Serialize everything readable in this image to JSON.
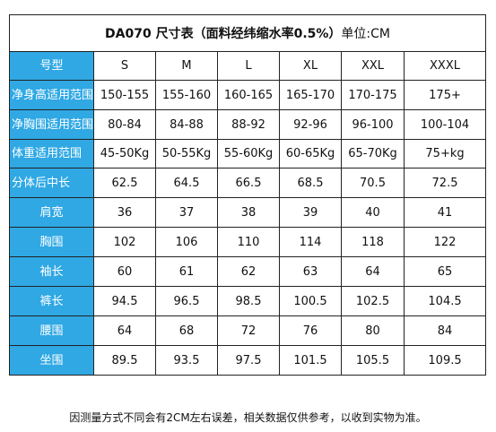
{
  "title": {
    "main": "DA070 尺寸表（面料经纬缩水率0.5%）",
    "unit": "单位:CM"
  },
  "table": {
    "header_label": "号型",
    "sizes": [
      "S",
      "M",
      "L",
      "XL",
      "XXL",
      "XXXL"
    ],
    "rows": [
      {
        "label": "净身高适用范围",
        "values": [
          "150-155",
          "155-160",
          "160-165",
          "165-170",
          "170-175",
          "175+"
        ]
      },
      {
        "label": "净胸围适用范围",
        "values": [
          "80-84",
          "84-88",
          "88-92",
          "92-96",
          "96-100",
          "100-104"
        ]
      },
      {
        "label": "体重适用范围",
        "values": [
          "45-50Kg",
          "50-55Kg",
          "55-60Kg",
          "60-65Kg",
          "65-70Kg",
          "75+kg"
        ]
      },
      {
        "label": "分体后中长",
        "values": [
          "62.5",
          "64.5",
          "66.5",
          "68.5",
          "70.5",
          "72.5"
        ]
      },
      {
        "label": "肩宽",
        "values": [
          "36",
          "37",
          "38",
          "39",
          "40",
          "41"
        ]
      },
      {
        "label": "胸围",
        "values": [
          "102",
          "106",
          "110",
          "114",
          "118",
          "122"
        ]
      },
      {
        "label": "袖长",
        "values": [
          "60",
          "61",
          "62",
          "63",
          "64",
          "65"
        ]
      },
      {
        "label": "裤长",
        "values": [
          "94.5",
          "96.5",
          "98.5",
          "100.5",
          "102.5",
          "104.5"
        ]
      },
      {
        "label": "腰围",
        "values": [
          "64",
          "68",
          "72",
          "76",
          "80",
          "84"
        ]
      },
      {
        "label": "坐围",
        "values": [
          "89.5",
          "93.5",
          "97.5",
          "101.5",
          "105.5",
          "109.5"
        ]
      }
    ]
  },
  "footer": "因测量方式不同会有2CM左右误差，相关数据仅供参考，以收到实物为准。"
}
